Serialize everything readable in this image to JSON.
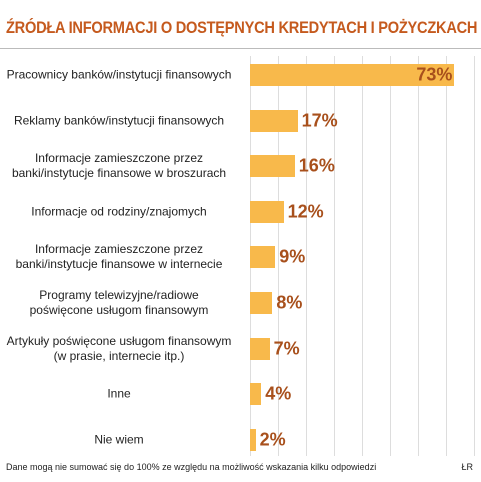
{
  "chart_data": {
    "type": "bar",
    "orientation": "horizontal",
    "title": "ŹRÓDŁA INFORMACJI O DOSTĘPNYCH KREDYTACH I POŻYCZKACH",
    "categories": [
      "Pracownicy banków/instytucji finansowych",
      "Reklamy banków/instytucji finansowych",
      "Informacje zamieszczone przez\nbanki/instytucje finansowe w broszurach",
      "Informacje od rodziny/znajomych",
      "Informacje zamieszczone przez\nbanki/instytucje finansowe w internecie",
      "Programy telewizyjne/radiowe\npoświęcone usługom finansowym",
      "Artykuły poświęcone usługom finansowym\n(w prasie, internecie itp.)",
      "Inne",
      "Nie wiem"
    ],
    "values": [
      73,
      17,
      16,
      12,
      9,
      8,
      7,
      4,
      2
    ],
    "value_labels": [
      "73%",
      "17%",
      "16%",
      "12%",
      "9%",
      "8%",
      "7%",
      "4%",
      "2%"
    ],
    "color": "#f8b94b",
    "xlim": [
      0,
      80
    ],
    "xticks": [
      0,
      10,
      20,
      30,
      40,
      50,
      60,
      70,
      80
    ],
    "grid": true,
    "footnote": "Dane mogą nie sumować się do 100% ze względu na możliwość wskazania kilku odpowiedzi",
    "source": "ŁR"
  }
}
